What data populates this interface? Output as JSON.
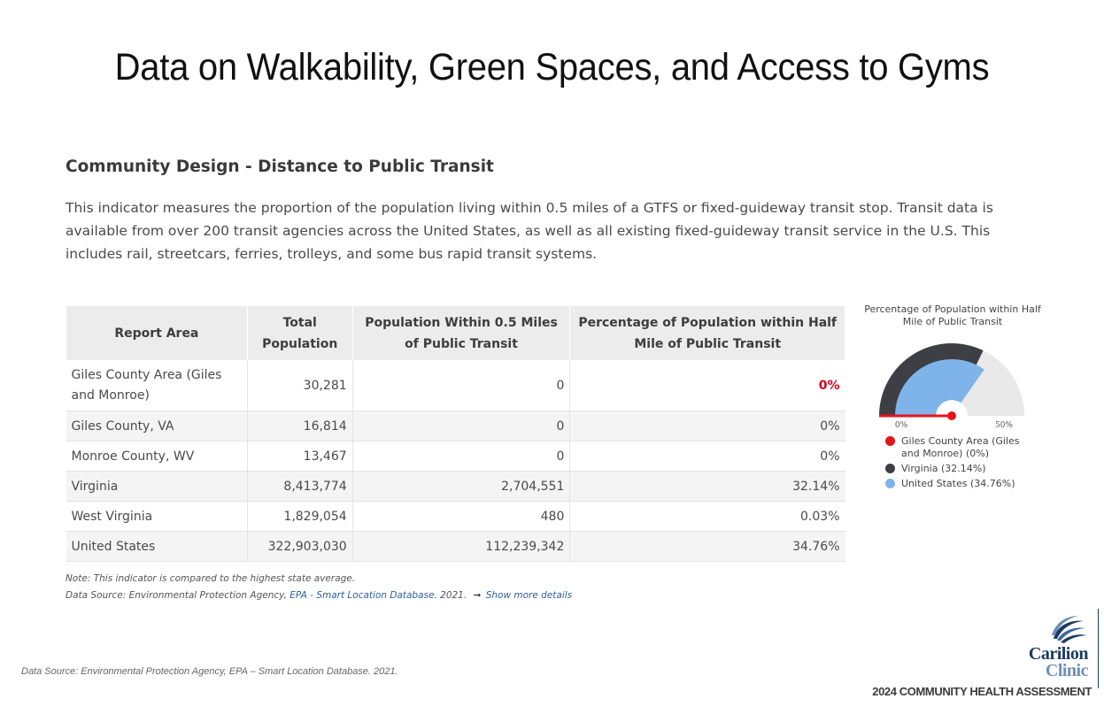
{
  "slide_title": "Data on Walkability, Green Spaces, and Access to Gyms",
  "section": {
    "title": "Community Design - Distance to Public Transit",
    "description": "This indicator measures the proportion of the population living within 0.5 miles of a GTFS or fixed-guideway transit stop. Transit data is available from over 200 transit agencies across the United States, as well as all existing fixed-guideway transit service in the U.S. This includes rail, streetcars, ferries, trolleys, and some bus rapid transit systems."
  },
  "table": {
    "headers": [
      "Report Area",
      "Total Population",
      "Population Within 0.5 Miles of Public Transit",
      "Percentage of Population within Half Mile of Public Transit"
    ],
    "rows": [
      [
        "Giles County Area (Giles and Monroe)",
        "30,281",
        "0",
        "0%"
      ],
      [
        "Giles County, VA",
        "16,814",
        "0",
        "0%"
      ],
      [
        "Monroe County, WV",
        "13,467",
        "0",
        "0%"
      ],
      [
        "Virginia",
        "8,413,774",
        "2,704,551",
        "32.14%"
      ],
      [
        "West Virginia",
        "1,829,054",
        "480",
        "0.03%"
      ],
      [
        "United States",
        "322,903,030",
        "112,239,342",
        "34.76%"
      ]
    ]
  },
  "notes": {
    "note": "Note: This indicator is compared to the highest state average.",
    "source_prefix": "Data Source: Environmental Protection Agency,",
    "source_link": "EPA - Smart Location Database",
    "source_suffix": ". 2021.",
    "more_arrow": "➞",
    "more_link": "Show more details"
  },
  "chart_data": {
    "type": "gauge",
    "title": "Percentage of Population within Half Mile of Public Transit",
    "axis_min": 0,
    "axis_max": 50,
    "axis_min_label": "0%",
    "axis_max_label": "50%",
    "series": [
      {
        "name": "Giles County Area (Giles and Monroe) (0%)",
        "value": 0,
        "color": "#e8141b",
        "style": "needle"
      },
      {
        "name": "Virginia (32.14%)",
        "value": 32.14,
        "color": "#3d3f45",
        "style": "outer-band"
      },
      {
        "name": "United States (34.76%)",
        "value": 34.76,
        "color": "#7fb4ea",
        "style": "inner-band"
      }
    ],
    "track_color": "#e9e9e9"
  },
  "footer": {
    "source": "Data Source: Environmental Protection Agency, EPA – Smart Location Database. 2021.",
    "logo_line1": "Carilion",
    "logo_line2": "Clinic",
    "assessment": "2024 COMMUNITY HEALTH ASSESSMENT"
  }
}
